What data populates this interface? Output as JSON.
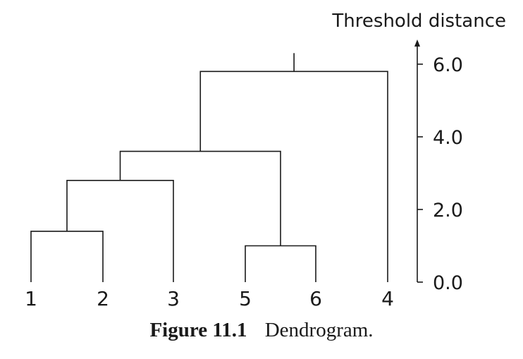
{
  "chart_data": {
    "type": "dendrogram",
    "axis_title": "Threshold distance",
    "ytick_labels": [
      "0.0",
      "2.0",
      "4.0",
      "6.0"
    ],
    "y_ticks": [
      0,
      2,
      4,
      6
    ],
    "ylim": [
      0,
      6.5
    ],
    "leaves": [
      "1",
      "2",
      "3",
      "5",
      "6",
      "4"
    ],
    "merges": [
      {
        "left": "1",
        "right": "2",
        "height": 1.4
      },
      {
        "left": "5",
        "right": "6",
        "height": 1.0
      },
      {
        "left": "1+2",
        "right": "3",
        "height": 2.8
      },
      {
        "left": "1+2+3",
        "right": "5+6",
        "height": 3.6
      },
      {
        "left": "1+2+3+5+6",
        "right": "4",
        "height": 5.8
      }
    ]
  },
  "caption": {
    "label": "Figure 11.1",
    "text": "Dendrogram."
  }
}
